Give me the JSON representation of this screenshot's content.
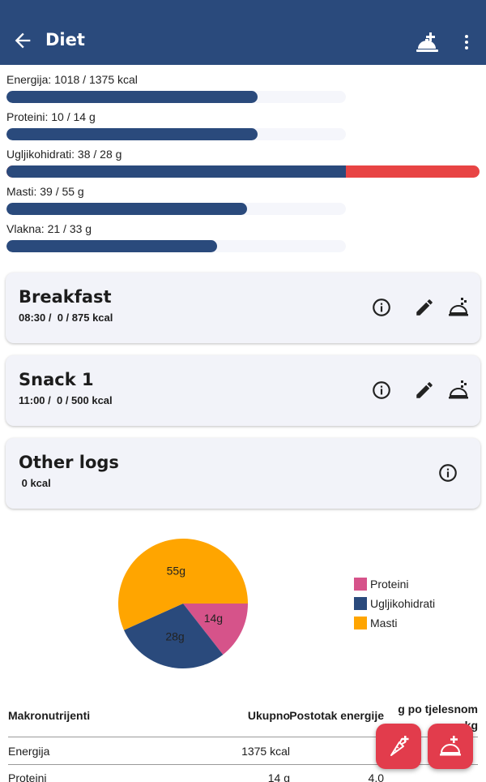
{
  "appbar": {
    "title": "Diet",
    "icons": {
      "back": "arrow-back-icon",
      "add_meal": "add-meal-icon",
      "more": "more-vert-icon"
    },
    "color": "#2a4a7c"
  },
  "nutrients": [
    {
      "label": "Energija: 1018 / 1375 kcal",
      "fraction": 0.74,
      "over": false
    },
    {
      "label": "Proteini: 10 / 14 g",
      "fraction": 0.74,
      "over": false
    },
    {
      "label": "Ugljikohidrati: 38 / 28 g",
      "fraction": 0.7174,
      "over": true
    },
    {
      "label": "Masti: 39 / 55 g",
      "fraction": 0.71,
      "over": false
    },
    {
      "label": "Vlakna: 21 / 33 g",
      "fraction": 0.62,
      "over": false
    }
  ],
  "meals": [
    {
      "name": "Breakfast",
      "meta": "08:30 /  0 / 875 kcal"
    },
    {
      "name": "Snack 1",
      "meta": "11:00 /  0 / 500 kcal"
    }
  ],
  "other_logs": {
    "name": "Other logs",
    "meta": " 0 kcal"
  },
  "chart_data": {
    "type": "pie",
    "categories": [
      "Proteini",
      "Ugljikohidrati",
      "Masti"
    ],
    "values": [
      14,
      28,
      55
    ],
    "data_labels": [
      "14g",
      "28g",
      "55g"
    ],
    "colors": [
      "#d6538a",
      "#2a4a7c",
      "#ffa500"
    ],
    "legend": "right"
  },
  "table": {
    "headers": [
      "Makronutrijenti",
      "Ukupno",
      "Postotak energije",
      "g po tjelesnom kg"
    ],
    "rows": [
      [
        "Energija",
        "1375 kcal",
        "",
        ""
      ],
      [
        "Proteini",
        "14 g",
        "4.0",
        ""
      ]
    ]
  },
  "fabs": [
    {
      "icon": "add-food-icon"
    },
    {
      "icon": "add-meal-icon"
    }
  ],
  "colors": {
    "over_limit": "#e84444",
    "accent": "#e23c4c"
  }
}
